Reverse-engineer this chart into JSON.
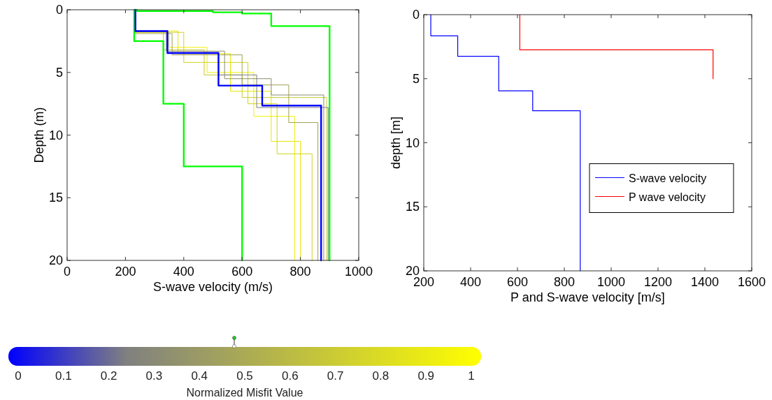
{
  "chart_data": [
    {
      "type": "line",
      "xlabel": "S-wave velocity (m/s)",
      "ylabel": "Depth (m)",
      "xlim": [
        0,
        1000
      ],
      "xticks": [
        0,
        200,
        400,
        600,
        800,
        1000
      ],
      "ylim": [
        20,
        0
      ],
      "yticks": [
        0,
        5,
        10,
        15,
        20
      ],
      "grid": false,
      "legend": false,
      "clabel": "Normalized Misfit Value",
      "clim": [
        0,
        1
      ],
      "cticks": [
        0,
        0.1,
        0.2,
        0.3,
        0.4,
        0.5,
        0.6,
        0.7,
        0.8,
        0.9,
        1
      ],
      "series": [
        {
          "color": "#f0f000",
          "x": [
            235,
            235,
            350,
            350,
            480,
            480,
            640,
            640,
            780,
            780
          ],
          "values": [
            0,
            1.8,
            1.8,
            3.0,
            3.0,
            5.0,
            5.0,
            8.5,
            8.5,
            20
          ]
        },
        {
          "color": "#e6e600",
          "x": [
            235,
            235,
            380,
            380,
            560,
            560,
            700,
            700,
            800,
            800
          ],
          "values": [
            0,
            1.7,
            1.7,
            3.5,
            3.5,
            6.5,
            6.5,
            10.5,
            10.5,
            20
          ]
        },
        {
          "color": "#d2d21e",
          "x": [
            235,
            235,
            400,
            400,
            620,
            620,
            720,
            720,
            840,
            840
          ],
          "values": [
            0,
            1.8,
            1.8,
            4.2,
            4.2,
            7.5,
            7.5,
            11.5,
            11.5,
            20
          ]
        },
        {
          "color": "#c8c832",
          "x": [
            235,
            235,
            330,
            330,
            470,
            470,
            600,
            600,
            890,
            890
          ],
          "values": [
            0,
            1.75,
            1.75,
            3.2,
            3.2,
            5.2,
            5.2,
            7.0,
            7.0,
            20
          ]
        },
        {
          "color": "#a0a050",
          "x": [
            235,
            235,
            360,
            360,
            600,
            600,
            760,
            760,
            860,
            860
          ],
          "values": [
            0,
            1.9,
            1.9,
            3.6,
            3.6,
            6.0,
            6.0,
            9.0,
            9.0,
            20
          ]
        },
        {
          "color": "#8c8c6e",
          "x": [
            235,
            235,
            340,
            340,
            540,
            540,
            700,
            700,
            880,
            880
          ],
          "values": [
            0,
            1.7,
            1.7,
            3.3,
            3.3,
            5.5,
            5.5,
            6.8,
            6.8,
            20
          ]
        },
        {
          "color": "#7b7b8a",
          "x": [
            235,
            235,
            345,
            345,
            520,
            520,
            650,
            650,
            895,
            895
          ],
          "values": [
            0,
            1.75,
            1.75,
            3.4,
            3.4,
            5.2,
            5.2,
            7.8,
            7.8,
            20
          ]
        },
        {
          "color": "#00ff00",
          "x": [
            230,
            230,
            330,
            330,
            400,
            400,
            600,
            600
          ],
          "values": [
            0,
            2.5,
            2.5,
            7.5,
            7.5,
            12.5,
            12.5,
            20
          ]
        },
        {
          "color": "#00ff00",
          "x": [
            240,
            240,
            500,
            500,
            600,
            600,
            700,
            700,
            900,
            900
          ],
          "values": [
            0,
            0.1,
            0.1,
            0.2,
            0.2,
            0.3,
            0.3,
            1.3,
            1.3,
            20
          ]
        },
        {
          "color": "#0000ff",
          "x": [
            234,
            234,
            344,
            344,
            519,
            519,
            669,
            669,
            871,
            871
          ],
          "values": [
            0,
            1.7,
            1.7,
            3.45,
            3.45,
            6.05,
            6.05,
            7.65,
            7.65,
            20
          ]
        }
      ]
    },
    {
      "type": "line",
      "xlabel": "P and S-wave velocity [m/s]",
      "ylabel": "depth [m]",
      "xlim": [
        200,
        1600
      ],
      "xticks": [
        200,
        400,
        600,
        800,
        1000,
        1200,
        1400,
        1600
      ],
      "ylim": [
        20,
        0
      ],
      "yticks": [
        0,
        5,
        10,
        15,
        20
      ],
      "grid": false,
      "legend": "right",
      "series": [
        {
          "name": "S-wave velocity",
          "color": "#0000ff",
          "x": [
            230,
            230,
            345,
            345,
            520,
            520,
            665,
            665,
            868,
            868
          ],
          "values": [
            0,
            1.65,
            1.65,
            3.25,
            3.25,
            5.95,
            5.95,
            7.5,
            7.5,
            20
          ]
        },
        {
          "name": "P wave velocity",
          "color": "#ff0000",
          "x": [
            610,
            610,
            1435,
            1435
          ],
          "values": [
            0,
            2.75,
            2.75,
            5
          ]
        }
      ]
    }
  ]
}
